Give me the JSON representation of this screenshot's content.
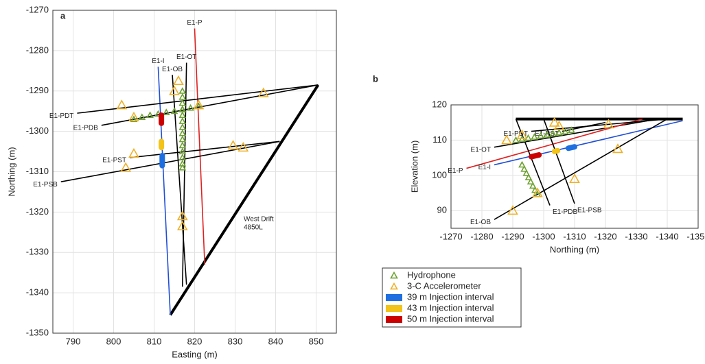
{
  "chart_data": [
    {
      "type": "line",
      "panel": "a",
      "x_label": "Easting (m)",
      "y_label": "Northing (m)",
      "xlim": [
        785,
        855
      ],
      "ylim": [
        -1350,
        -1270
      ],
      "xticks": [
        790,
        800,
        810,
        820,
        830,
        840,
        850
      ],
      "yticks": [
        -1350,
        -1340,
        -1330,
        -1320,
        -1310,
        -1300,
        -1290,
        -1280,
        -1270
      ],
      "grid": true,
      "annotations": [
        "West Drift",
        "4850L"
      ],
      "drift": {
        "color": "#000000",
        "x": [
          850.5,
          814
        ],
        "y": [
          -1288.5,
          -1345.5
        ]
      },
      "series": [
        {
          "name": "E1-P",
          "color": "#e02020",
          "x": [
            820,
            822.5
          ],
          "y": [
            -1274.5,
            -1333
          ]
        },
        {
          "name": "E1-OT",
          "color": "#000000",
          "x": [
            818,
            817
          ],
          "y": [
            -1283,
            -1338.5
          ]
        },
        {
          "name": "E1-OB",
          "color": "#000000",
          "x": [
            814.5,
            818
          ],
          "y": [
            -1286,
            -1338
          ]
        },
        {
          "name": "E1-I",
          "color": "#1f4fd6",
          "x": [
            811,
            814
          ],
          "y": [
            -1284,
            -1345.5
          ]
        },
        {
          "name": "E1-PDT",
          "color": "#000000",
          "x": [
            791,
            850.5
          ],
          "y": [
            -1295.5,
            -1288.5
          ]
        },
        {
          "name": "E1-PDB",
          "color": "#000000",
          "x": [
            797,
            850.5
          ],
          "y": [
            -1298.5,
            -1288.5
          ]
        },
        {
          "name": "E1-PST",
          "color": "#000000",
          "x": [
            804,
            841
          ],
          "y": [
            -1306.5,
            -1302.5
          ]
        },
        {
          "name": "E1-PSB",
          "color": "#000000",
          "x": [
            787,
            841
          ],
          "y": [
            -1312.5,
            -1302.5
          ]
        }
      ],
      "groups": [
        {
          "legend": 0,
          "x": [
            805,
            807,
            809,
            811,
            813,
            815,
            817,
            819,
            821,
            817,
            817,
            817,
            817,
            817,
            817,
            817,
            817,
            817,
            817,
            817,
            817,
            817,
            817
          ],
          "y": [
            -1297,
            -1296.5,
            -1296,
            -1295.7,
            -1295.3,
            -1295,
            -1294.6,
            -1294.2,
            -1293.8,
            -1290,
            -1291.5,
            -1293,
            -1294.5,
            -1296,
            -1297.5,
            -1299,
            -1300.5,
            -1302,
            -1303.5,
            -1305,
            -1306.5,
            -1308,
            -1309
          ]
        },
        {
          "legend": 1,
          "x": [
            802,
            805,
            805,
            803,
            816,
            815,
            817,
            817,
            821,
            829.5,
            832,
            837
          ],
          "y": [
            -1293.5,
            -1296.5,
            -1305.5,
            -1309,
            -1287.5,
            -1290,
            -1321,
            -1323.5,
            -1293.5,
            -1303.5,
            -1304,
            -1290.5
          ]
        }
      ],
      "injections": [
        {
          "legend": 2,
          "x": [
            812,
            812
          ],
          "y": [
            -1306,
            -1308.5
          ]
        },
        {
          "legend": 3,
          "x": [
            811.8,
            811.8
          ],
          "y": [
            -1302.5,
            -1304
          ]
        },
        {
          "legend": 4,
          "x": [
            811.8,
            811.8
          ],
          "y": [
            -1296,
            -1298
          ]
        }
      ]
    },
    {
      "type": "line",
      "panel": "b",
      "x_label": "Northing (m)",
      "y_label": "Elevation (m)",
      "xlim": [
        -1270,
        -1350
      ],
      "ylim": [
        85,
        120
      ],
      "xticks": [
        -1270,
        -1280,
        -1290,
        -1300,
        -1310,
        -1320,
        -1330,
        -1340,
        -1350
      ],
      "yticks": [
        90,
        100,
        110,
        120
      ],
      "grid": true,
      "drift": {
        "color": "#000000",
        "x": [
          -1291,
          -1345
        ],
        "y": [
          116,
          116
        ]
      },
      "series": [
        {
          "name": "E1-OT",
          "color": "#000000",
          "x": [
            -1284,
            -1337
          ],
          "y": [
            108,
            116
          ]
        },
        {
          "name": "E1-P",
          "color": "#e02020",
          "x": [
            -1275,
            -1332
          ],
          "y": [
            102,
            116
          ]
        },
        {
          "name": "E1-I",
          "color": "#1f4fd6",
          "x": [
            -1284,
            -1345
          ],
          "y": [
            103,
            115.5
          ]
        },
        {
          "name": "E1-OB",
          "color": "#000000",
          "x": [
            -1284,
            -1340
          ],
          "y": [
            87.5,
            116
          ]
        },
        {
          "name": "E1-PDB",
          "color": "#000000",
          "x": [
            -1302,
            -1291
          ],
          "y": [
            91.5,
            116
          ]
        },
        {
          "name": "E1-PSB",
          "color": "#000000",
          "x": [
            -1310,
            -1300
          ],
          "y": [
            92,
            116
          ]
        },
        {
          "name": "E1-PDT",
          "color": "#000000",
          "x": [
            -1296,
            -1340
          ],
          "y": [
            112.5,
            116
          ]
        },
        {
          "name": "E1-PST",
          "color": "#000000",
          "x": [
            -1306,
            -1320
          ],
          "y": [
            112.5,
            115
          ]
        }
      ],
      "groups": [
        {
          "legend": 0,
          "x": [
            -1291,
            -1293,
            -1295,
            -1297,
            -1299,
            -1301,
            -1303,
            -1305,
            -1307,
            -1309,
            -1293,
            -1293.7,
            -1294.4,
            -1295.1,
            -1295.8,
            -1296.5,
            -1297.2,
            -1298
          ],
          "y": [
            110,
            110.3,
            110.6,
            110.9,
            111.2,
            111.5,
            111.8,
            112.1,
            112.4,
            112.8,
            103,
            101.8,
            100.6,
            99.4,
            98.2,
            97,
            95.8,
            94.6
          ]
        },
        {
          "legend": 1,
          "x": [
            -1288,
            -1293,
            -1303.5,
            -1305,
            -1321,
            -1324,
            -1310,
            -1290,
            -1298
          ],
          "y": [
            110,
            111.5,
            115,
            114,
            114.5,
            107.5,
            99,
            90,
            95
          ]
        }
      ],
      "injections": [
        {
          "legend": 2,
          "x": [
            -1308,
            -1310
          ],
          "y": [
            107.7,
            108.1
          ]
        },
        {
          "legend": 3,
          "x": [
            -1303.5,
            -1304.5
          ],
          "y": [
            106.8,
            107
          ]
        },
        {
          "legend": 4,
          "x": [
            -1296,
            -1298.5
          ],
          "y": [
            105.3,
            105.8
          ]
        }
      ]
    }
  ],
  "legend": [
    {
      "name": "Hydrophone",
      "color": "#6fa232",
      "marker": "triangle"
    },
    {
      "name": "3-C Accelerometer",
      "color": "#eeb12a",
      "marker": "triangle"
    },
    {
      "name": "39 m Injection interval",
      "color": "#1f6fe0",
      "marker": "bar"
    },
    {
      "name": "43 m Injection interval",
      "color": "#f2c318",
      "marker": "bar"
    },
    {
      "name": "50 m Injection interval",
      "color": "#cc0000",
      "marker": "bar"
    }
  ]
}
